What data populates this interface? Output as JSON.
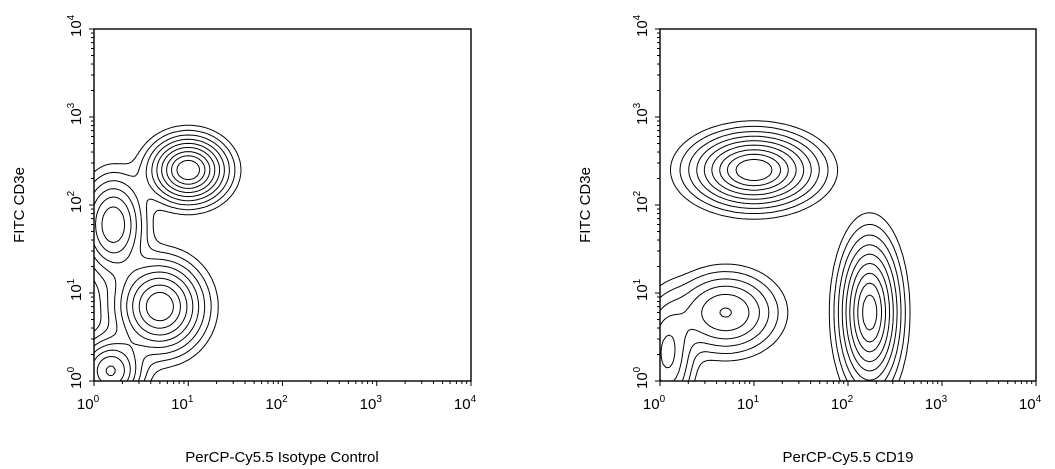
{
  "chart_data": [
    {
      "type": "contour",
      "xlabel": "PerCP-Cy5.5 Isotype Control",
      "ylabel": "FITC CD3e",
      "x_scale": "log",
      "y_scale": "log",
      "xlim": [
        1,
        10000
      ],
      "ylim": [
        1,
        10000
      ],
      "x_ticks": [
        {
          "base": "10",
          "exp": "0"
        },
        {
          "base": "10",
          "exp": "1"
        },
        {
          "base": "10",
          "exp": "2"
        },
        {
          "base": "10",
          "exp": "3"
        },
        {
          "base": "10",
          "exp": "4"
        }
      ],
      "y_ticks": [
        {
          "base": "10",
          "exp": "0"
        },
        {
          "base": "10",
          "exp": "1"
        },
        {
          "base": "10",
          "exp": "2"
        },
        {
          "base": "10",
          "exp": "3"
        },
        {
          "base": "10",
          "exp": "4"
        }
      ],
      "populations": [
        {
          "x": 10,
          "y": 250,
          "sx": 0.22,
          "sy": 0.2,
          "w": 1.0
        },
        {
          "x": 5,
          "y": 7,
          "sx": 0.25,
          "sy": 0.28,
          "w": 0.85
        },
        {
          "x": 1.6,
          "y": 60,
          "sx": 0.18,
          "sy": 0.3,
          "w": 0.55
        },
        {
          "x": 1.5,
          "y": 1.3,
          "sx": 0.18,
          "sy": 0.2,
          "w": 0.6
        }
      ],
      "levels": [
        0.04,
        0.08,
        0.14,
        0.22,
        0.32,
        0.44,
        0.58,
        0.72,
        0.86
      ]
    },
    {
      "type": "contour",
      "xlabel": "PerCP-Cy5.5 CD19",
      "ylabel": "FITC CD3e",
      "x_scale": "log",
      "y_scale": "log",
      "xlim": [
        1,
        10000
      ],
      "ylim": [
        1,
        10000
      ],
      "x_ticks": [
        {
          "base": "10",
          "exp": "0"
        },
        {
          "base": "10",
          "exp": "1"
        },
        {
          "base": "10",
          "exp": "2"
        },
        {
          "base": "10",
          "exp": "3"
        },
        {
          "base": "10",
          "exp": "4"
        }
      ],
      "y_ticks": [
        {
          "base": "10",
          "exp": "0"
        },
        {
          "base": "10",
          "exp": "1"
        },
        {
          "base": "10",
          "exp": "2"
        },
        {
          "base": "10",
          "exp": "3"
        },
        {
          "base": "10",
          "exp": "4"
        }
      ],
      "populations": [
        {
          "x": 10,
          "y": 250,
          "sx": 0.35,
          "sy": 0.22,
          "w": 1.0
        },
        {
          "x": 170,
          "y": 6,
          "sx": 0.17,
          "sy": 0.45,
          "w": 0.95
        },
        {
          "x": 5,
          "y": 6,
          "sx": 0.3,
          "sy": 0.25,
          "w": 0.45
        },
        {
          "x": 1.2,
          "y": 2,
          "sx": 0.15,
          "sy": 0.35,
          "w": 0.35
        }
      ],
      "levels": [
        0.04,
        0.08,
        0.14,
        0.22,
        0.32,
        0.44,
        0.58,
        0.72,
        0.86
      ]
    }
  ]
}
